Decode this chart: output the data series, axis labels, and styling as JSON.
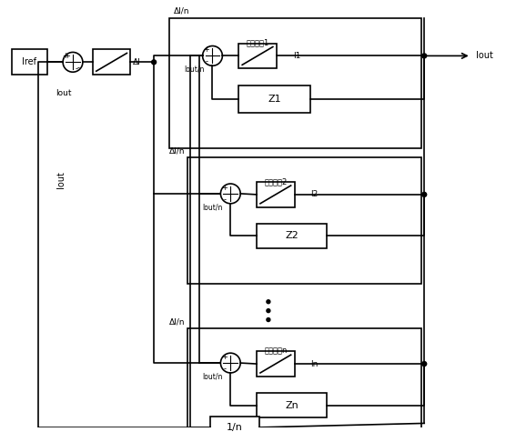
{
  "bg_color": "#ffffff",
  "line_color": "#000000",
  "box_color": "#ffffff",
  "box_edge": "#000000",
  "fig_width": 5.67,
  "fig_height": 4.75,
  "labels": {
    "Iref": "Iref",
    "Iout": "Iout",
    "delta_I": "ΔI",
    "delta_I_over_n_top": "ΔI/n",
    "delta_I_over_n_mid": "ΔI/n",
    "delta_I_over_n_bot": "ΔI/n",
    "Iout_over_n": "Iout/n",
    "Z1": "Z1",
    "Z2": "Z2",
    "Zn": "Zn",
    "module1": "电源模剗1",
    "module2": "电源模剗2",
    "modulen": "电源模块n",
    "I1": "I1",
    "I2": "I2",
    "In": "In",
    "Iout_label": "Iout",
    "one_over_n": "1/n",
    "Iout_feedback": "Iout"
  }
}
